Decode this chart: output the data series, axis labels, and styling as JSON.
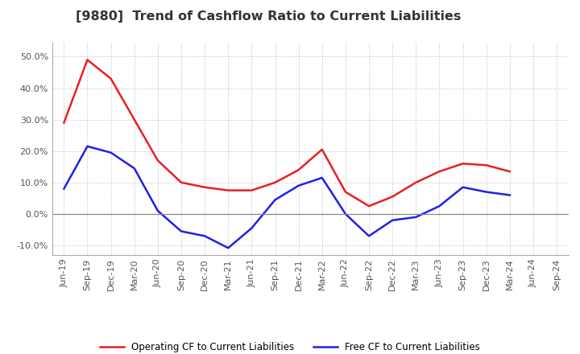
{
  "title": "[9880]  Trend of Cashflow Ratio to Current Liabilities",
  "x_labels": [
    "Jun-19",
    "Sep-19",
    "Dec-19",
    "Mar-20",
    "Jun-20",
    "Sep-20",
    "Dec-20",
    "Mar-21",
    "Jun-21",
    "Sep-21",
    "Dec-21",
    "Mar-22",
    "Jun-22",
    "Sep-22",
    "Dec-22",
    "Mar-23",
    "Jun-23",
    "Sep-23",
    "Dec-23",
    "Mar-24",
    "Jun-24",
    "Sep-24"
  ],
  "operating_cf": [
    0.29,
    0.49,
    0.43,
    0.3,
    0.17,
    0.1,
    0.085,
    0.075,
    0.075,
    0.1,
    0.14,
    0.205,
    0.07,
    0.025,
    0.055,
    0.1,
    0.135,
    0.16,
    0.155,
    0.135,
    null,
    null
  ],
  "free_cf": [
    0.08,
    0.215,
    0.195,
    0.145,
    0.01,
    -0.055,
    -0.07,
    -0.108,
    -0.045,
    0.045,
    0.09,
    0.115,
    0.0,
    -0.07,
    -0.02,
    -0.01,
    0.025,
    0.085,
    0.07,
    0.06,
    null,
    null
  ],
  "operating_color": "#e82020",
  "free_color": "#2020e8",
  "ylim": [
    -0.13,
    0.545
  ],
  "yticks": [
    -0.1,
    0.0,
    0.1,
    0.2,
    0.3,
    0.4,
    0.5
  ],
  "background_color": "#ffffff",
  "grid_color": "#bbbbbb",
  "legend_op": "Operating CF to Current Liabilities",
  "legend_free": "Free CF to Current Liabilities",
  "title_fontsize": 11.5,
  "axis_fontsize": 8,
  "legend_fontsize": 8.5,
  "title_color": "#333333",
  "tick_color": "#555555"
}
